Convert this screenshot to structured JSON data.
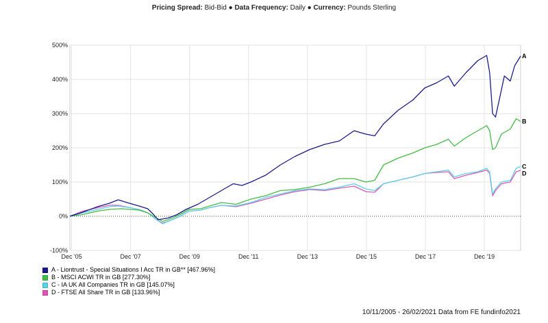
{
  "header": {
    "spread_label": "Pricing Spread:",
    "spread_value": "Bid-Bid",
    "bullet": "●",
    "frequency_label": "Data Frequency:",
    "frequency_value": "Daily",
    "currency_label": "Currency:",
    "currency_value": "Pounds Sterling"
  },
  "footer": "10/11/2005 - 26/02/2021 Data from FE fundinfo2021",
  "chart_data": {
    "type": "line",
    "x_range": [
      2005.86,
      2021.15
    ],
    "ylim": [
      -100,
      500
    ],
    "y_ticks": [
      {
        "value": 500,
        "label": "500%"
      },
      {
        "value": 400,
        "label": "400%"
      },
      {
        "value": 300,
        "label": "300%"
      },
      {
        "value": 200,
        "label": "200%"
      },
      {
        "value": 100,
        "label": "100%"
      },
      {
        "value": 0,
        "label": "0%"
      },
      {
        "value": -100,
        "label": "-100%"
      }
    ],
    "x_ticks": [
      {
        "value": 2005.92,
        "label": "Dec '05"
      },
      {
        "value": 2007.92,
        "label": "Dec '07"
      },
      {
        "value": 2009.92,
        "label": "Dec '09"
      },
      {
        "value": 2011.92,
        "label": "Dec '11"
      },
      {
        "value": 2013.92,
        "label": "Dec '13"
      },
      {
        "value": 2015.92,
        "label": "Dec '15"
      },
      {
        "value": 2017.92,
        "label": "Dec '17"
      },
      {
        "value": 2019.92,
        "label": "Dec '19"
      }
    ],
    "grid": true,
    "series": [
      {
        "name": "A - Liontrust - Special Situations I Acc TR in GB** [467.96%]",
        "end_label": "A",
        "color": "#1a1a8c",
        "points": [
          [
            2005.86,
            0
          ],
          [
            2006.3,
            12
          ],
          [
            2006.8,
            28
          ],
          [
            2007.2,
            38
          ],
          [
            2007.5,
            48
          ],
          [
            2007.8,
            40
          ],
          [
            2008.2,
            30
          ],
          [
            2008.5,
            22
          ],
          [
            2008.7,
            5
          ],
          [
            2008.85,
            -10
          ],
          [
            2009.0,
            -8
          ],
          [
            2009.2,
            -5
          ],
          [
            2009.5,
            5
          ],
          [
            2009.8,
            20
          ],
          [
            2010.2,
            35
          ],
          [
            2010.6,
            55
          ],
          [
            2011.0,
            75
          ],
          [
            2011.4,
            95
          ],
          [
            2011.7,
            90
          ],
          [
            2012.0,
            100
          ],
          [
            2012.5,
            120
          ],
          [
            2013.0,
            150
          ],
          [
            2013.5,
            175
          ],
          [
            2014.0,
            195
          ],
          [
            2014.5,
            210
          ],
          [
            2015.0,
            220
          ],
          [
            2015.5,
            250
          ],
          [
            2015.9,
            240
          ],
          [
            2016.2,
            235
          ],
          [
            2016.5,
            270
          ],
          [
            2017.0,
            310
          ],
          [
            2017.5,
            340
          ],
          [
            2017.9,
            375
          ],
          [
            2018.3,
            390
          ],
          [
            2018.7,
            410
          ],
          [
            2018.9,
            380
          ],
          [
            2019.3,
            420
          ],
          [
            2019.7,
            455
          ],
          [
            2020.0,
            470
          ],
          [
            2020.1,
            420
          ],
          [
            2020.2,
            300
          ],
          [
            2020.3,
            290
          ],
          [
            2020.45,
            350
          ],
          [
            2020.6,
            410
          ],
          [
            2020.8,
            395
          ],
          [
            2020.95,
            440
          ],
          [
            2021.15,
            468
          ]
        ]
      },
      {
        "name": "B - MSCI ACWI TR in GB [277.30%]",
        "end_label": "B",
        "color": "#44bb44",
        "points": [
          [
            2005.86,
            0
          ],
          [
            2006.3,
            5
          ],
          [
            2006.8,
            15
          ],
          [
            2007.2,
            20
          ],
          [
            2007.6,
            22
          ],
          [
            2007.9,
            20
          ],
          [
            2008.2,
            18
          ],
          [
            2008.5,
            10
          ],
          [
            2008.8,
            -5
          ],
          [
            2009.0,
            -15
          ],
          [
            2009.2,
            -10
          ],
          [
            2009.6,
            5
          ],
          [
            2009.9,
            20
          ],
          [
            2010.3,
            22
          ],
          [
            2010.6,
            30
          ],
          [
            2011.0,
            40
          ],
          [
            2011.5,
            35
          ],
          [
            2012.0,
            50
          ],
          [
            2012.5,
            60
          ],
          [
            2013.0,
            75
          ],
          [
            2013.5,
            78
          ],
          [
            2014.0,
            85
          ],
          [
            2014.5,
            95
          ],
          [
            2015.0,
            110
          ],
          [
            2015.5,
            110
          ],
          [
            2015.9,
            100
          ],
          [
            2016.2,
            105
          ],
          [
            2016.5,
            150
          ],
          [
            2017.0,
            170
          ],
          [
            2017.5,
            185
          ],
          [
            2017.9,
            200
          ],
          [
            2018.3,
            210
          ],
          [
            2018.7,
            225
          ],
          [
            2018.9,
            205
          ],
          [
            2019.3,
            230
          ],
          [
            2019.7,
            250
          ],
          [
            2020.0,
            265
          ],
          [
            2020.1,
            250
          ],
          [
            2020.2,
            195
          ],
          [
            2020.3,
            200
          ],
          [
            2020.5,
            240
          ],
          [
            2020.8,
            255
          ],
          [
            2021.0,
            285
          ],
          [
            2021.15,
            277
          ]
        ]
      },
      {
        "name": "C - IA UK All Companies TR in GB [145.07%]",
        "end_label": "C",
        "color": "#55d4e8",
        "points": [
          [
            2005.86,
            0
          ],
          [
            2006.3,
            10
          ],
          [
            2006.8,
            20
          ],
          [
            2007.2,
            28
          ],
          [
            2007.5,
            30
          ],
          [
            2007.9,
            25
          ],
          [
            2008.2,
            20
          ],
          [
            2008.5,
            10
          ],
          [
            2008.8,
            -10
          ],
          [
            2009.0,
            -22
          ],
          [
            2009.2,
            -15
          ],
          [
            2009.6,
            0
          ],
          [
            2009.9,
            15
          ],
          [
            2010.3,
            18
          ],
          [
            2010.6,
            25
          ],
          [
            2011.0,
            32
          ],
          [
            2011.5,
            30
          ],
          [
            2012.0,
            40
          ],
          [
            2012.5,
            55
          ],
          [
            2013.0,
            65
          ],
          [
            2013.5,
            75
          ],
          [
            2014.0,
            80
          ],
          [
            2014.5,
            78
          ],
          [
            2015.0,
            85
          ],
          [
            2015.5,
            95
          ],
          [
            2015.9,
            80
          ],
          [
            2016.2,
            75
          ],
          [
            2016.5,
            95
          ],
          [
            2017.0,
            105
          ],
          [
            2017.5,
            115
          ],
          [
            2017.9,
            125
          ],
          [
            2018.3,
            130
          ],
          [
            2018.7,
            135
          ],
          [
            2018.9,
            115
          ],
          [
            2019.3,
            125
          ],
          [
            2019.7,
            130
          ],
          [
            2020.0,
            140
          ],
          [
            2020.1,
            130
          ],
          [
            2020.2,
            65
          ],
          [
            2020.3,
            80
          ],
          [
            2020.5,
            100
          ],
          [
            2020.8,
            105
          ],
          [
            2021.0,
            140
          ],
          [
            2021.15,
            145
          ]
        ]
      },
      {
        "name": "D - FTSE All Share TR in GB [133.96%]",
        "end_label": "D",
        "color": "#e055b8",
        "points": [
          [
            2005.86,
            0
          ],
          [
            2006.3,
            15
          ],
          [
            2006.8,
            25
          ],
          [
            2007.2,
            32
          ],
          [
            2007.5,
            32
          ],
          [
            2007.9,
            25
          ],
          [
            2008.2,
            20
          ],
          [
            2008.5,
            10
          ],
          [
            2008.8,
            -10
          ],
          [
            2009.0,
            -20
          ],
          [
            2009.2,
            -15
          ],
          [
            2009.6,
            0
          ],
          [
            2009.9,
            15
          ],
          [
            2010.3,
            18
          ],
          [
            2010.6,
            25
          ],
          [
            2011.0,
            32
          ],
          [
            2011.5,
            28
          ],
          [
            2012.0,
            38
          ],
          [
            2012.5,
            50
          ],
          [
            2013.0,
            62
          ],
          [
            2013.5,
            72
          ],
          [
            2014.0,
            78
          ],
          [
            2014.5,
            75
          ],
          [
            2015.0,
            82
          ],
          [
            2015.5,
            88
          ],
          [
            2015.9,
            72
          ],
          [
            2016.2,
            70
          ],
          [
            2016.5,
            95
          ],
          [
            2017.0,
            105
          ],
          [
            2017.5,
            115
          ],
          [
            2017.9,
            125
          ],
          [
            2018.3,
            128
          ],
          [
            2018.7,
            130
          ],
          [
            2018.9,
            110
          ],
          [
            2019.3,
            120
          ],
          [
            2019.7,
            128
          ],
          [
            2020.0,
            135
          ],
          [
            2020.1,
            125
          ],
          [
            2020.2,
            60
          ],
          [
            2020.3,
            75
          ],
          [
            2020.5,
            95
          ],
          [
            2020.8,
            100
          ],
          [
            2021.0,
            130
          ],
          [
            2021.15,
            134
          ]
        ]
      }
    ]
  }
}
